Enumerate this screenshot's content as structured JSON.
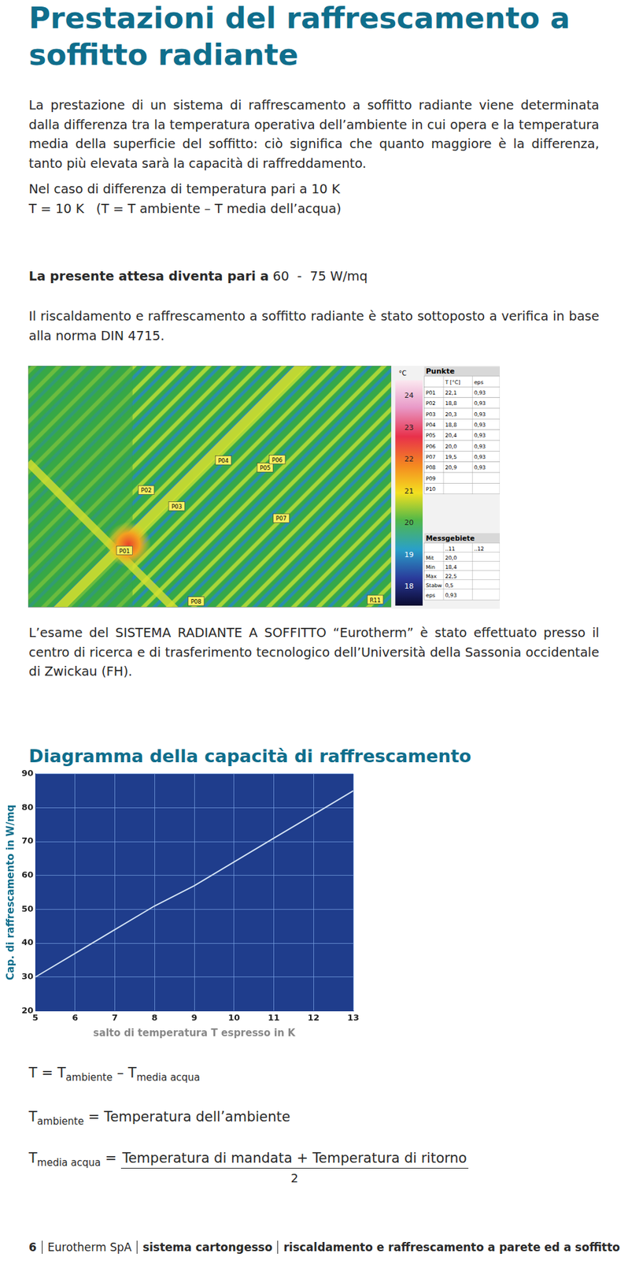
{
  "title": "Prestazioni del raffrescamento a soffitto radiante",
  "intro": "La prestazione di un sistema di raffrescamento a soffitto radiante viene determinata dalla differenza tra la temperatura operativa dell’ambiente in cui opera e la temperatura media della superficie del soffitto: ciò significa che quanto maggiore è la differenza, tanto più elevata sarà la capacità di raffreddamento.",
  "delta_lines": [
    "Nel caso di differenza di temperatura pari a 10 K",
    "T = 10 K   (T = T ambiente – T media dell’acqua)"
  ],
  "expected": {
    "label": "La presente attesa diventa pari a",
    "value": "60  -  75 W/mq"
  },
  "norm": "Il riscaldamento e raffrescamento a soffitto radiante è stato sottoposto a verifica in base alla norma DIN 4715.",
  "thermal": {
    "unit": "°C",
    "scale": [
      24,
      23,
      22,
      21,
      20,
      19,
      18
    ],
    "markers": [
      "P01",
      "P02",
      "P03",
      "P04",
      "P05",
      "P06",
      "P07",
      "P08",
      "R11"
    ],
    "points_header": "Punkte",
    "points_columns": [
      "T [°C]",
      "eps"
    ],
    "points": [
      [
        "P01",
        "22,1",
        "0,93"
      ],
      [
        "P02",
        "18,8",
        "0,93"
      ],
      [
        "P03",
        "20,3",
        "0,93"
      ],
      [
        "P04",
        "18,8",
        "0,93"
      ],
      [
        "P05",
        "20,4",
        "0,93"
      ],
      [
        "P06",
        "20,0",
        "0,93"
      ],
      [
        "P07",
        "19,5",
        "0,93"
      ],
      [
        "P08",
        "20,9",
        "0,93"
      ],
      [
        "P09"
      ],
      [
        "P10"
      ]
    ],
    "areas_header": "Messgebiete",
    "areas_columns": [
      "..11",
      "..12"
    ],
    "areas": [
      [
        "Mit",
        "20,0"
      ],
      [
        "Min",
        "18,4"
      ],
      [
        "Max",
        "22,5"
      ],
      [
        "Stabw",
        "0,5"
      ],
      [
        "eps",
        "0,93"
      ]
    ]
  },
  "exam": "L’esame del SISTEMA RADIANTE A SOFFITTO “Eurotherm” è stato effettuato presso il centro di ricerca e di trasferimento tecnologico dell’Università della Sassonia occidentale di Zwickau (FH).",
  "chart_data": {
    "type": "line",
    "title": "Diagramma della capacità di raffrescamento",
    "x_label": "salto di temperatura T espresso in K",
    "y_label": "Cap. di raffrescamento in W/mq",
    "x": [
      5,
      6,
      7,
      8,
      9,
      10,
      11,
      12,
      13
    ],
    "values": [
      30,
      37,
      44,
      51,
      57,
      64,
      71,
      78,
      85
    ],
    "color": "#d2e2f4",
    "marker": "none",
    "xlim": [
      5,
      13
    ],
    "xticks": [
      5,
      6,
      7,
      8,
      9,
      10,
      11,
      12,
      13
    ],
    "ylim": [
      20,
      90
    ],
    "yticks": [
      20,
      30,
      40,
      50,
      60,
      70,
      80,
      90
    ],
    "grid": true
  },
  "formula_main": [
    {
      "t": "T = T"
    },
    {
      "sub": "ambiente"
    },
    {
      "t": " – T"
    },
    {
      "sub": "media acqua"
    }
  ],
  "formula_def": {
    "symbol": "T",
    "sub": "ambiente",
    "text": "= Temperatura dell’ambiente"
  },
  "formula_frac": {
    "symbol": "T",
    "sub": "media acqua",
    "eq": "=",
    "numerator": "Temperatura di mandata + Temperatura di ritorno",
    "denominator": "2"
  },
  "footer": {
    "page": "6",
    "items": [
      "Eurotherm SpA",
      "sistema cartongesso",
      "riscaldamento e raffrescamento a parete ed a soffitto"
    ]
  }
}
